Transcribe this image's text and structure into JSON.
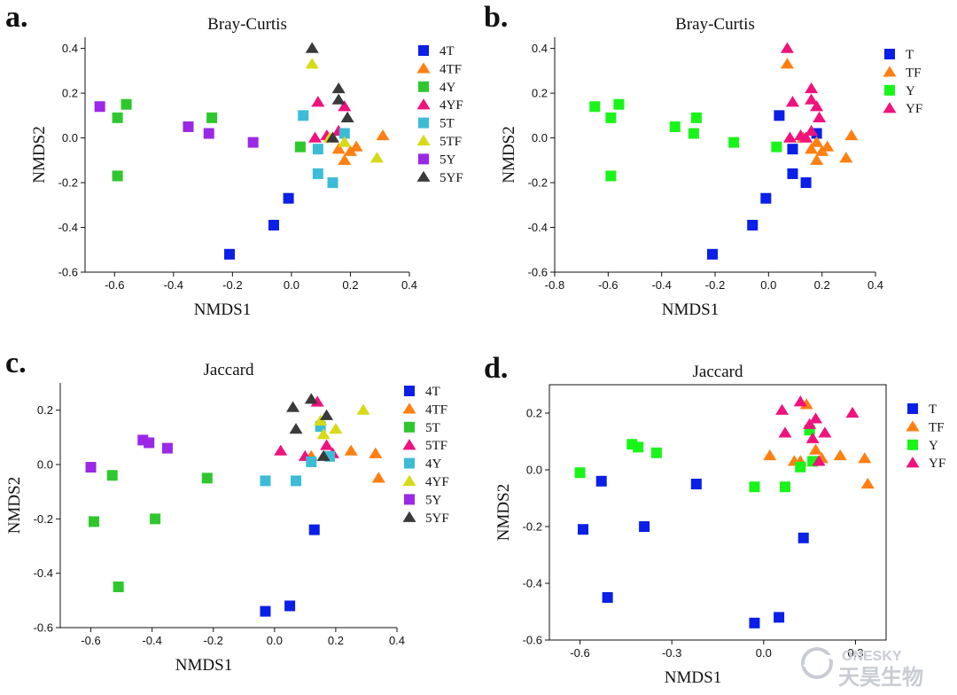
{
  "figure": {
    "watermark": {
      "line1": "ONESKY",
      "line2": "天昊生物"
    }
  },
  "colors": {
    "blue": "#0a1fe8",
    "orange": "#ff7f11",
    "green_dark": "#2ec82e",
    "green_light": "#19f519",
    "magenta": "#f0127d",
    "cyan": "#3cbcd6",
    "yellow": "#d7da16",
    "purple": "#9a28e6",
    "dark": "#3a3a3a"
  },
  "chart_data": [
    {
      "panel": "a.",
      "type": "scatter",
      "title": "Bray-Curtis",
      "xlabel": "NMDS1",
      "ylabel": "NMDS2",
      "xlim": [
        -0.7,
        0.4
      ],
      "ylim": [
        -0.6,
        0.45
      ],
      "xticks": [
        -0.6,
        -0.4,
        -0.2,
        0.0,
        0.2,
        0.4
      ],
      "xtick_labels": [
        "-0.6",
        "-0.4",
        "-0.2",
        "0.0",
        "0.2",
        "0.4"
      ],
      "yticks": [
        -0.6,
        -0.4,
        -0.2,
        0.0,
        0.2,
        0.4
      ],
      "ytick_labels": [
        "-0.6",
        "-0.4",
        "-0.2",
        "0.0",
        "0.2",
        "0.4"
      ],
      "frame": "left-bottom",
      "series": [
        {
          "name": "4T",
          "marker": "square",
          "color": "#0a1fe8",
          "points": [
            [
              -0.21,
              -0.52
            ],
            [
              -0.06,
              -0.39
            ],
            [
              -0.01,
              -0.27
            ]
          ]
        },
        {
          "name": "4TF",
          "marker": "triangle",
          "color": "#ff7f11",
          "points": [
            [
              0.31,
              0.01
            ],
            [
              0.22,
              -0.04
            ],
            [
              0.18,
              -0.1
            ],
            [
              0.16,
              -0.05
            ],
            [
              0.2,
              -0.06
            ]
          ]
        },
        {
          "name": "4Y",
          "marker": "square",
          "color": "#2ec82e",
          "points": [
            [
              -0.56,
              0.15
            ],
            [
              -0.59,
              0.09
            ],
            [
              -0.59,
              -0.17
            ],
            [
              -0.27,
              0.09
            ],
            [
              0.03,
              -0.04
            ]
          ]
        },
        {
          "name": "4YF",
          "marker": "triangle",
          "color": "#f0127d",
          "points": [
            [
              0.09,
              0.16
            ],
            [
              0.18,
              0.14
            ],
            [
              0.08,
              0.0
            ],
            [
              0.12,
              0.01
            ],
            [
              0.16,
              0.03
            ]
          ]
        },
        {
          "name": "5T",
          "marker": "square",
          "color": "#3cbcd6",
          "points": [
            [
              0.04,
              0.1
            ],
            [
              0.09,
              -0.05
            ],
            [
              0.09,
              -0.16
            ],
            [
              0.14,
              -0.2
            ],
            [
              0.18,
              0.02
            ]
          ]
        },
        {
          "name": "5TF",
          "marker": "triangle",
          "color": "#d7da16",
          "points": [
            [
              0.07,
              0.33
            ],
            [
              0.29,
              -0.09
            ],
            [
              0.13,
              0.0
            ],
            [
              0.18,
              -0.02
            ]
          ]
        },
        {
          "name": "5Y",
          "marker": "square",
          "color": "#9a28e6",
          "points": [
            [
              -0.65,
              0.14
            ],
            [
              -0.35,
              0.05
            ],
            [
              -0.28,
              0.02
            ],
            [
              -0.13,
              -0.02
            ]
          ]
        },
        {
          "name": "5YF",
          "marker": "triangle",
          "color": "#3a3a3a",
          "points": [
            [
              0.07,
              0.4
            ],
            [
              0.16,
              0.22
            ],
            [
              0.16,
              0.17
            ],
            [
              0.19,
              0.09
            ],
            [
              0.14,
              0.0
            ]
          ]
        }
      ]
    },
    {
      "panel": "b.",
      "type": "scatter",
      "title": "Bray-Curtis",
      "xlabel": "NMDS1",
      "ylabel": "NMDS2",
      "xlim": [
        -0.8,
        0.4
      ],
      "ylim": [
        -0.6,
        0.45
      ],
      "xticks": [
        -0.8,
        -0.6,
        -0.4,
        -0.2,
        0.0,
        0.2,
        0.4
      ],
      "xtick_labels": [
        "-0.8",
        "-0.6",
        "-0.4",
        "-0.2",
        "0.0",
        "0.2",
        "0.4"
      ],
      "yticks": [
        -0.6,
        -0.4,
        -0.2,
        0.0,
        0.2,
        0.4
      ],
      "ytick_labels": [
        "-0.6",
        "-0.4",
        "-0.2",
        "0.0",
        "0.2",
        "0.4"
      ],
      "frame": "left-bottom",
      "series": [
        {
          "name": "T",
          "marker": "square",
          "color": "#0a1fe8",
          "points": [
            [
              -0.21,
              -0.52
            ],
            [
              -0.06,
              -0.39
            ],
            [
              -0.01,
              -0.27
            ],
            [
              0.04,
              0.1
            ],
            [
              0.09,
              -0.05
            ],
            [
              0.09,
              -0.16
            ],
            [
              0.14,
              -0.2
            ],
            [
              0.18,
              0.02
            ]
          ]
        },
        {
          "name": "TF",
          "marker": "triangle",
          "color": "#ff7f11",
          "points": [
            [
              0.07,
              0.33
            ],
            [
              0.31,
              0.01
            ],
            [
              0.29,
              -0.09
            ],
            [
              0.22,
              -0.04
            ],
            [
              0.18,
              -0.1
            ],
            [
              0.16,
              -0.05
            ],
            [
              0.2,
              -0.06
            ],
            [
              0.13,
              0.0
            ],
            [
              0.18,
              -0.02
            ]
          ]
        },
        {
          "name": "Y",
          "marker": "square",
          "color": "#19f519",
          "points": [
            [
              -0.65,
              0.14
            ],
            [
              -0.56,
              0.15
            ],
            [
              -0.59,
              0.09
            ],
            [
              -0.59,
              -0.17
            ],
            [
              -0.35,
              0.05
            ],
            [
              -0.28,
              0.02
            ],
            [
              -0.27,
              0.09
            ],
            [
              -0.13,
              -0.02
            ],
            [
              0.03,
              -0.04
            ]
          ]
        },
        {
          "name": "YF",
          "marker": "triangle",
          "color": "#f0127d",
          "points": [
            [
              0.07,
              0.4
            ],
            [
              0.16,
              0.22
            ],
            [
              0.16,
              0.17
            ],
            [
              0.18,
              0.14
            ],
            [
              0.19,
              0.09
            ],
            [
              0.09,
              0.16
            ],
            [
              0.08,
              0.0
            ],
            [
              0.12,
              0.01
            ],
            [
              0.16,
              0.03
            ],
            [
              0.14,
              0.0
            ]
          ]
        }
      ]
    },
    {
      "panel": "c.",
      "type": "scatter",
      "title": "Jaccard",
      "xlabel": "NMDS1",
      "ylabel": "NMDS2",
      "xlim": [
        -0.7,
        0.4
      ],
      "ylim": [
        -0.6,
        0.3
      ],
      "xticks": [
        -0.6,
        -0.4,
        -0.2,
        0.0,
        0.2,
        0.4
      ],
      "xtick_labels": [
        "-0.6",
        "-0.4",
        "-0.2",
        "0.0",
        "0.2",
        "0.4"
      ],
      "yticks": [
        -0.6,
        -0.4,
        -0.2,
        0.0,
        0.2
      ],
      "ytick_labels": [
        "-0.6",
        "-0.4",
        "-0.2",
        "0.0",
        "0.2"
      ],
      "frame": "left-bottom",
      "series": [
        {
          "name": "4T",
          "marker": "square",
          "color": "#0a1fe8",
          "points": [
            [
              -0.03,
              -0.54
            ],
            [
              0.05,
              -0.52
            ],
            [
              0.13,
              -0.24
            ]
          ]
        },
        {
          "name": "4TF",
          "marker": "triangle",
          "color": "#ff7f11",
          "points": [
            [
              0.25,
              0.05
            ],
            [
              0.33,
              0.04
            ],
            [
              0.34,
              -0.05
            ],
            [
              0.12,
              0.03
            ]
          ]
        },
        {
          "name": "5T",
          "marker": "square",
          "color": "#2ec82e",
          "points": [
            [
              -0.59,
              -0.21
            ],
            [
              -0.53,
              -0.04
            ],
            [
              -0.51,
              -0.45
            ],
            [
              -0.39,
              -0.2
            ],
            [
              -0.22,
              -0.05
            ]
          ]
        },
        {
          "name": "5TF",
          "marker": "triangle",
          "color": "#f0127d",
          "points": [
            [
              0.14,
              0.23
            ],
            [
              0.02,
              0.05
            ],
            [
              0.1,
              0.03
            ],
            [
              0.17,
              0.07
            ],
            [
              0.19,
              0.04
            ]
          ]
        },
        {
          "name": "4Y",
          "marker": "square",
          "color": "#3cbcd6",
          "points": [
            [
              -0.03,
              -0.06
            ],
            [
              0.07,
              -0.06
            ],
            [
              0.12,
              0.01
            ],
            [
              0.15,
              0.14
            ],
            [
              0.18,
              0.03
            ]
          ]
        },
        {
          "name": "4YF",
          "marker": "triangle",
          "color": "#d7da16",
          "points": [
            [
              0.29,
              0.2
            ],
            [
              0.2,
              0.13
            ],
            [
              0.15,
              0.16
            ],
            [
              0.16,
              0.11
            ]
          ]
        },
        {
          "name": "5Y",
          "marker": "square",
          "color": "#9a28e6",
          "points": [
            [
              -0.6,
              -0.01
            ],
            [
              -0.43,
              0.09
            ],
            [
              -0.41,
              0.08
            ],
            [
              -0.35,
              0.06
            ]
          ]
        },
        {
          "name": "5YF",
          "marker": "triangle",
          "color": "#3a3a3a",
          "points": [
            [
              0.06,
              0.21
            ],
            [
              0.12,
              0.24
            ],
            [
              0.17,
              0.18
            ],
            [
              0.07,
              0.13
            ],
            [
              0.16,
              0.03
            ]
          ]
        }
      ]
    },
    {
      "panel": "d.",
      "type": "scatter",
      "title": "Jaccard",
      "xlabel": "NMDS1",
      "ylabel": "NMDS2",
      "xlim": [
        -0.7,
        0.4
      ],
      "ylim": [
        -0.6,
        0.3
      ],
      "xticks": [
        -0.6,
        -0.3,
        0.0,
        0.3
      ],
      "xtick_labels": [
        "-0.6",
        "-0.3",
        "0.0",
        "0.3"
      ],
      "yticks": [
        -0.6,
        -0.4,
        -0.2,
        0.0,
        0.2
      ],
      "ytick_labels": [
        "-0.6",
        "-0.4",
        "-0.2",
        "0.0",
        "0.2"
      ],
      "frame": "box",
      "series": [
        {
          "name": "T",
          "marker": "square",
          "color": "#0a1fe8",
          "points": [
            [
              -0.03,
              -0.54
            ],
            [
              0.05,
              -0.52
            ],
            [
              0.13,
              -0.24
            ],
            [
              -0.59,
              -0.21
            ],
            [
              -0.53,
              -0.04
            ],
            [
              -0.51,
              -0.45
            ],
            [
              -0.39,
              -0.2
            ],
            [
              -0.22,
              -0.05
            ]
          ]
        },
        {
          "name": "TF",
          "marker": "triangle",
          "color": "#ff7f11",
          "points": [
            [
              0.14,
              0.23
            ],
            [
              0.02,
              0.05
            ],
            [
              0.1,
              0.03
            ],
            [
              0.17,
              0.07
            ],
            [
              0.19,
              0.04
            ],
            [
              0.25,
              0.05
            ],
            [
              0.33,
              0.04
            ],
            [
              0.34,
              -0.05
            ],
            [
              0.12,
              0.03
            ]
          ]
        },
        {
          "name": "Y",
          "marker": "square",
          "color": "#19f519",
          "points": [
            [
              -0.6,
              -0.01
            ],
            [
              -0.43,
              0.09
            ],
            [
              -0.41,
              0.08
            ],
            [
              -0.35,
              0.06
            ],
            [
              -0.03,
              -0.06
            ],
            [
              0.07,
              -0.06
            ],
            [
              0.12,
              0.01
            ],
            [
              0.15,
              0.14
            ],
            [
              0.16,
              0.03
            ]
          ]
        },
        {
          "name": "YF",
          "marker": "triangle",
          "color": "#f0127d",
          "points": [
            [
              0.06,
              0.21
            ],
            [
              0.12,
              0.24
            ],
            [
              0.17,
              0.18
            ],
            [
              0.07,
              0.13
            ],
            [
              0.16,
              0.11
            ],
            [
              0.29,
              0.2
            ],
            [
              0.2,
              0.13
            ],
            [
              0.15,
              0.16
            ],
            [
              0.18,
              0.03
            ]
          ]
        }
      ]
    }
  ]
}
